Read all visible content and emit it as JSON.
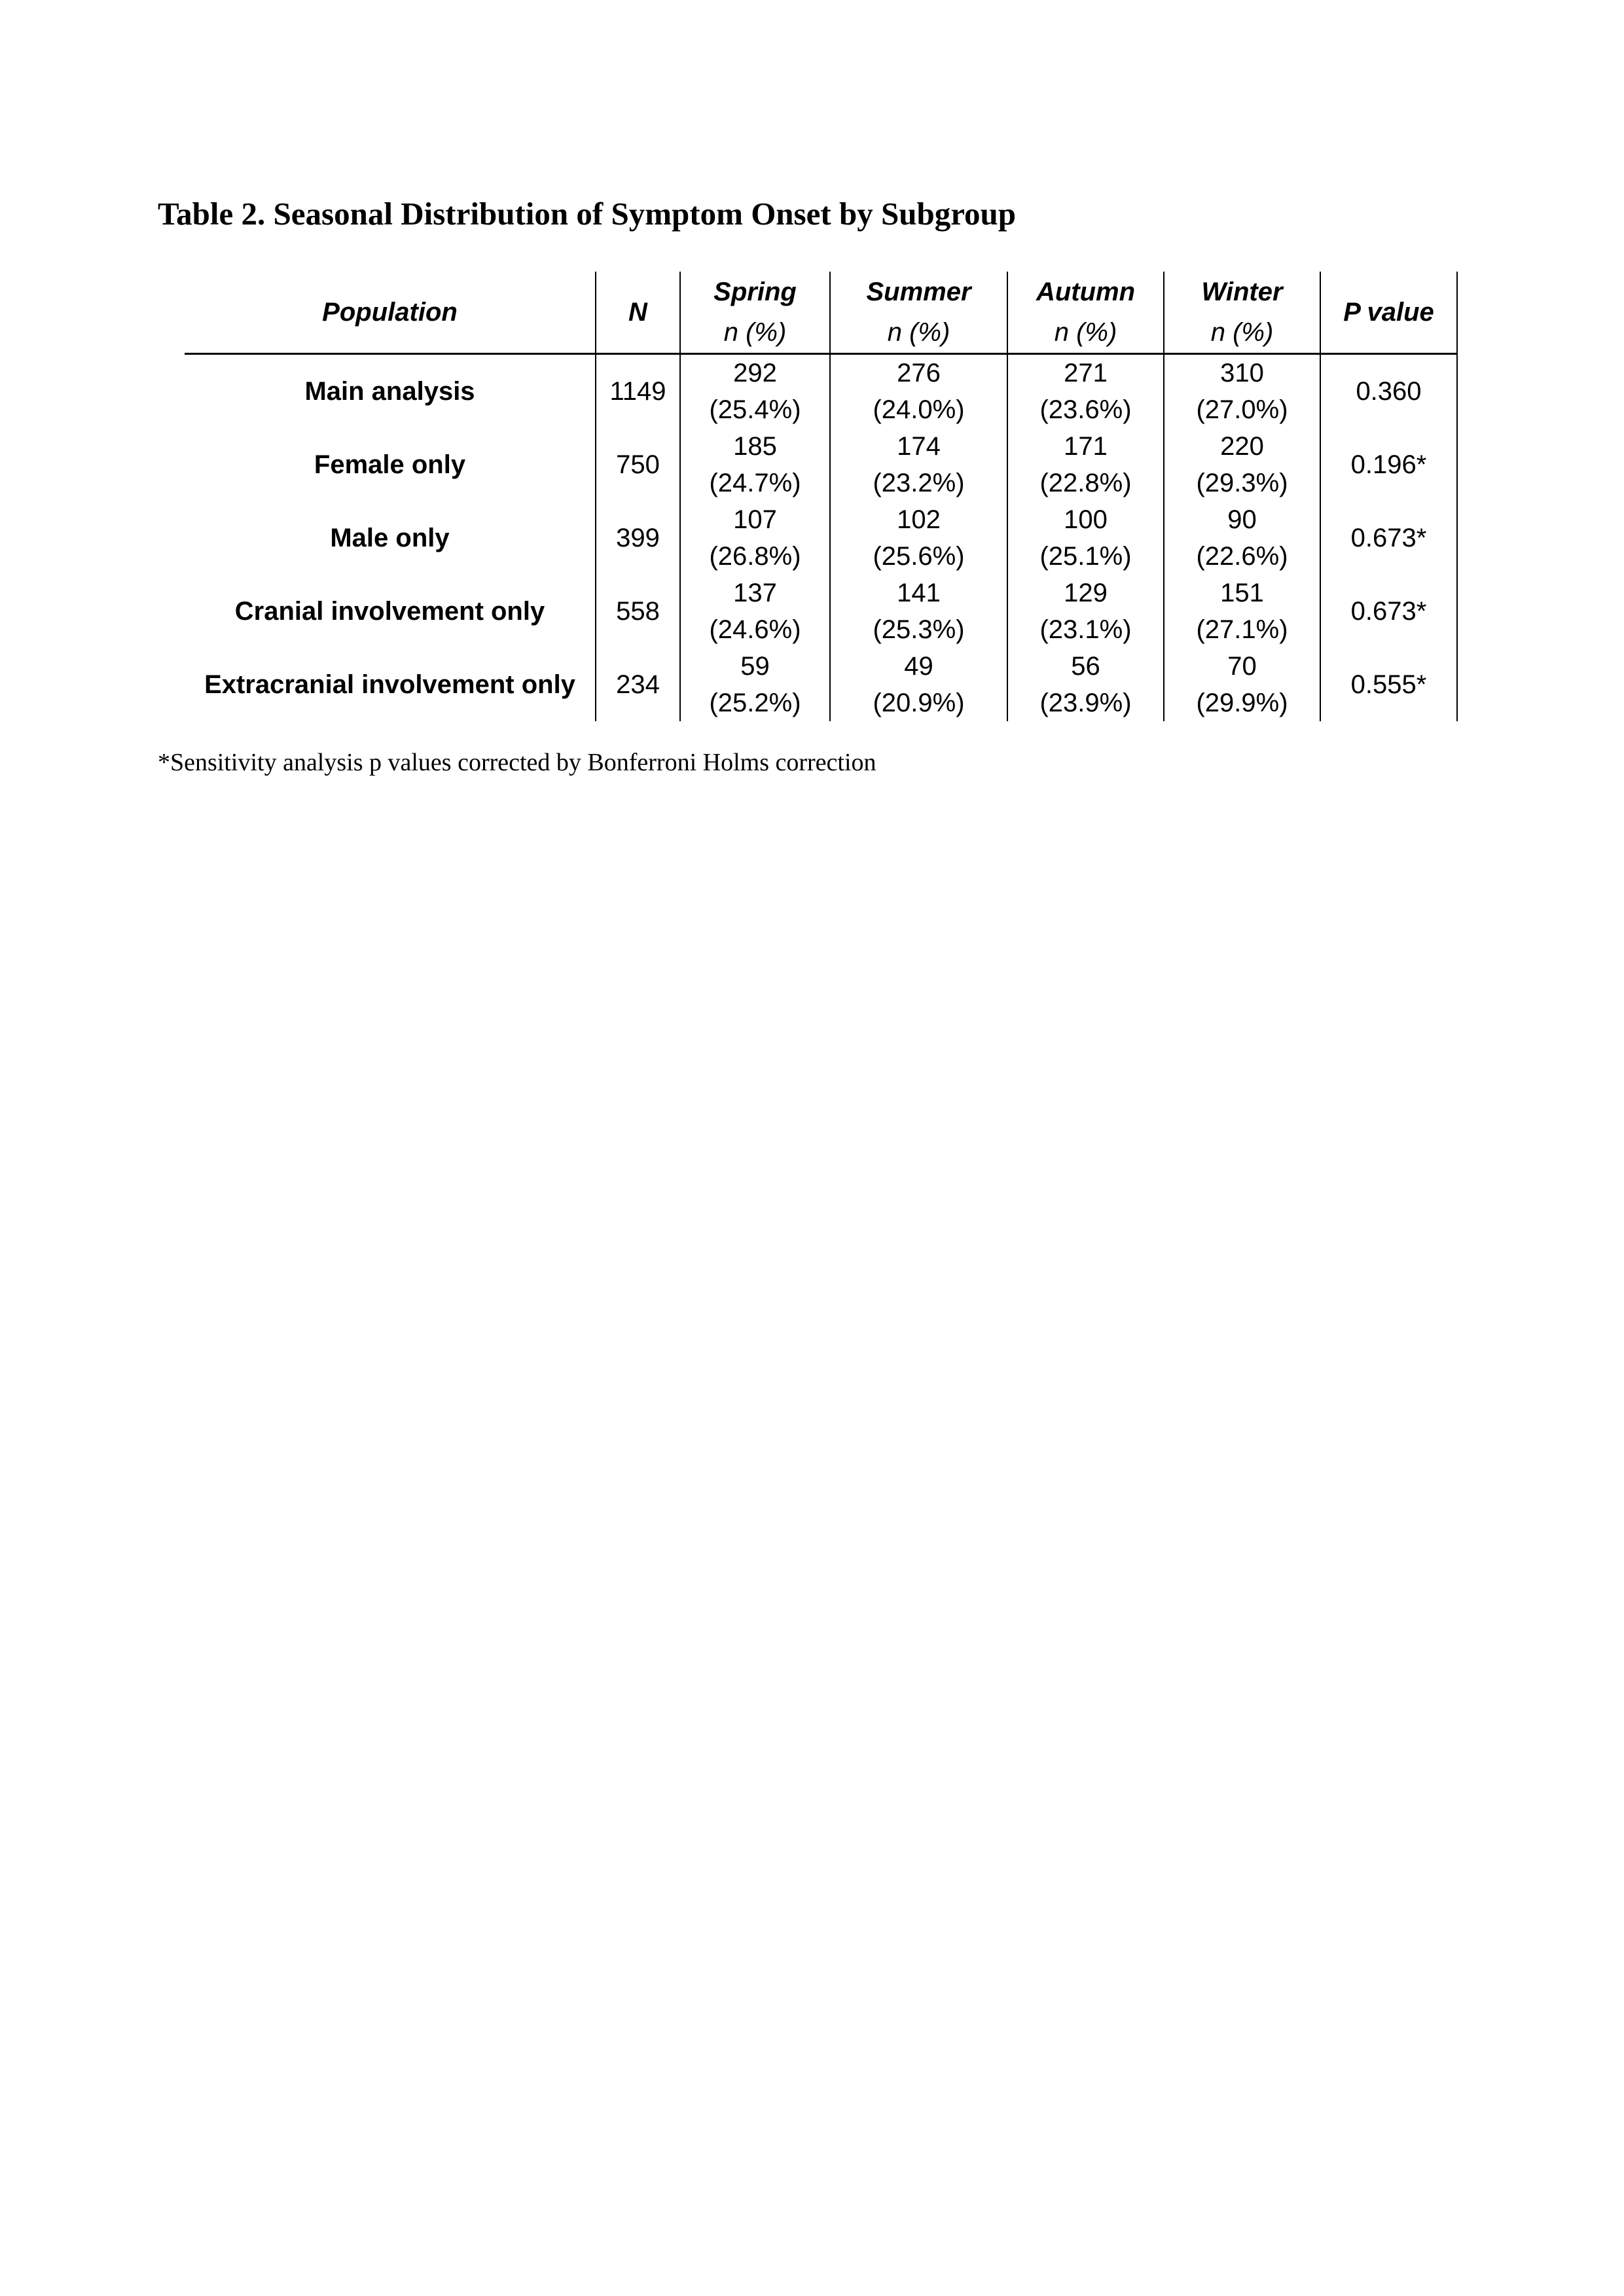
{
  "title": "Table 2. Seasonal Distribution of Symptom Onset by Subgroup",
  "columns": {
    "population": "Population",
    "n": "N",
    "seasons": [
      {
        "name": "Spring",
        "sub": "n (%)"
      },
      {
        "name": "Summer",
        "sub": "n (%)"
      },
      {
        "name": "Autumn",
        "sub": "n (%)"
      },
      {
        "name": "Winter",
        "sub": "n (%)"
      }
    ],
    "p": "P value"
  },
  "rows": [
    {
      "population": "Main analysis",
      "n": "1149",
      "cells": [
        {
          "n": "292",
          "pct": "(25.4%)"
        },
        {
          "n": "276",
          "pct": "(24.0%)"
        },
        {
          "n": "271",
          "pct": "(23.6%)"
        },
        {
          "n": "310",
          "pct": "(27.0%)"
        }
      ],
      "p": "0.360"
    },
    {
      "population": "Female only",
      "n": "750",
      "cells": [
        {
          "n": "185",
          "pct": "(24.7%)"
        },
        {
          "n": "174",
          "pct": "(23.2%)"
        },
        {
          "n": "171",
          "pct": "(22.8%)"
        },
        {
          "n": "220",
          "pct": "(29.3%)"
        }
      ],
      "p": "0.196*"
    },
    {
      "population": "Male only",
      "n": "399",
      "cells": [
        {
          "n": "107",
          "pct": "(26.8%)"
        },
        {
          "n": "102",
          "pct": "(25.6%)"
        },
        {
          "n": "100",
          "pct": "(25.1%)"
        },
        {
          "n": "90",
          "pct": "(22.6%)"
        }
      ],
      "p": "0.673*"
    },
    {
      "population": "Cranial involvement only",
      "n": "558",
      "cells": [
        {
          "n": "137",
          "pct": "(24.6%)"
        },
        {
          "n": "141",
          "pct": "(25.3%)"
        },
        {
          "n": "129",
          "pct": "(23.1%)"
        },
        {
          "n": "151",
          "pct": "(27.1%)"
        }
      ],
      "p": "0.673*"
    },
    {
      "population": "Extracranial involvement only",
      "n": "234",
      "cells": [
        {
          "n": "59",
          "pct": "(25.2%)"
        },
        {
          "n": "49",
          "pct": "(20.9%)"
        },
        {
          "n": "56",
          "pct": "(23.9%)"
        },
        {
          "n": "70",
          "pct": "(29.9%)"
        }
      ],
      "p": "0.555*"
    }
  ],
  "footnote": "*Sensitivity analysis p values corrected by Bonferroni Holms correction"
}
